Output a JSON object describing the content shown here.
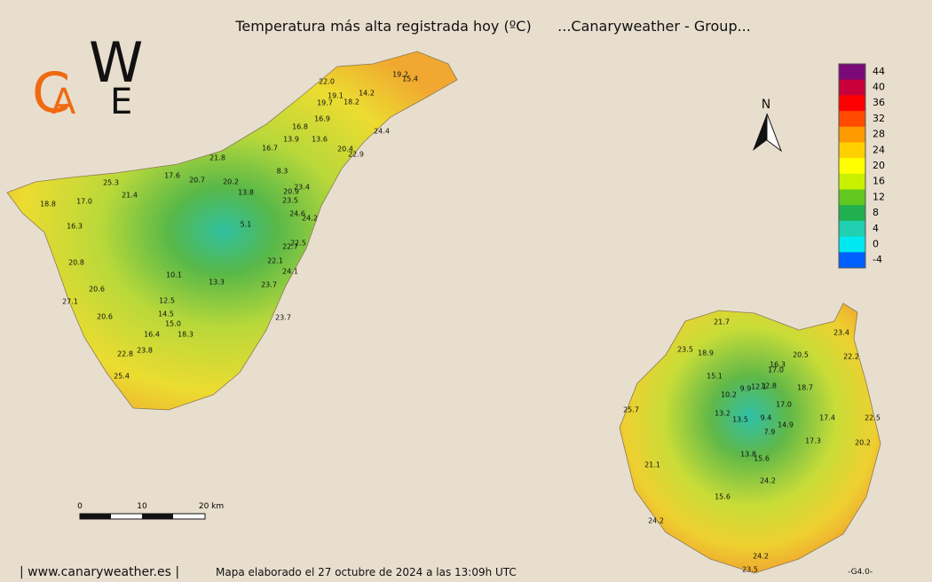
{
  "header": {
    "title": "Temperatura más alta registrada hoy (ºC)",
    "group": "...Canaryweather - Group..."
  },
  "logo": {
    "letters": [
      "C",
      "A",
      "W",
      "E"
    ]
  },
  "north": "N",
  "legend": [
    {
      "label": 44,
      "color": "#7a0a78"
    },
    {
      "label": 40,
      "color": "#c8003c"
    },
    {
      "label": 36,
      "color": "#ff0000"
    },
    {
      "label": 32,
      "color": "#ff4a00"
    },
    {
      "label": 28,
      "color": "#ff9a00"
    },
    {
      "label": 24,
      "color": "#ffd000"
    },
    {
      "label": 20,
      "color": "#ffff00"
    },
    {
      "label": 16,
      "color": "#c8f000"
    },
    {
      "label": 12,
      "color": "#60c820"
    },
    {
      "label": 8,
      "color": "#20b050"
    },
    {
      "label": 4,
      "color": "#20d0b0"
    },
    {
      "label": 0,
      "color": "#00e8f0"
    },
    {
      "label": -4,
      "color": "#0060ff"
    }
  ],
  "tenerife": [
    "22.0",
    "19.2",
    "15.4",
    "14.2",
    "19.1",
    "19.7",
    "18.2",
    "16.9",
    "16.8",
    "24.4",
    "13.9",
    "13.6",
    "20.4",
    "22.9",
    "16.7",
    "21.8",
    "17.6",
    "20.7",
    "20.2",
    "8.3",
    "25.3",
    "23.4",
    "20.9",
    "13.8",
    "21.4",
    "23.5",
    "18.8",
    "17.0",
    "24.6",
    "24.2",
    "5.1",
    "16.3",
    "22.5",
    "22.7",
    "20.8",
    "22.1",
    "24.1",
    "10.1",
    "13.3",
    "20.6",
    "23.7",
    "27.1",
    "12.5",
    "14.5",
    "20.6",
    "23.7",
    "15.0",
    "16.4",
    "18.3",
    "22.8",
    "23.8",
    "25.4"
  ],
  "gran_canaria": [
    "21.7",
    "23.4",
    "23.5",
    "18.9",
    "20.5",
    "22.2",
    "16.3",
    "17.0",
    "15.1",
    "12.1",
    "12.8",
    "9.9",
    "18.7",
    "10.2",
    "17.0",
    "25.7",
    "13.2",
    "13.5",
    "9.4",
    "17.4",
    "22.5",
    "14.9",
    "7.9",
    "17.3",
    "20.2",
    "13.8",
    "15.6",
    "21.1",
    "24.2",
    "15.6",
    "24.2",
    "24.2",
    "23.5"
  ],
  "scale": [
    "0",
    "10",
    "20 km"
  ],
  "footer": {
    "site": "| www.canaryweather.es |",
    "made": "Mapa elaborado el 27 octubre de 2024 a las 13:09h UTC",
    "version": "-G4.0-"
  }
}
